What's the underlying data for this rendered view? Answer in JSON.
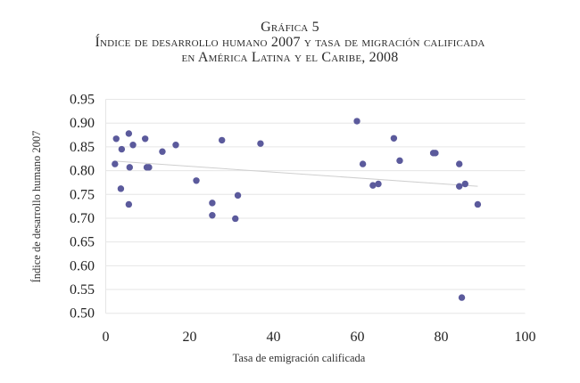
{
  "header": {
    "figure_label": "Gráfica 5",
    "title_line1": "Índice de desarrollo humano 2007 y tasa de migración calificada",
    "title_line2": "en América Latina y el Caribe, 2008"
  },
  "colors": {
    "point": "#5b5a9c",
    "grid": "#e6e6e6",
    "trend": "#cfcfcf"
  },
  "chart_data": {
    "type": "scatter",
    "title": "Índice de desarrollo humano 2007 y tasa de migración calificada en América Latina y el Caribe, 2008",
    "xlabel": "Tasa de emigración calificada",
    "ylabel": "Índice de desarrollo humano 2007",
    "xlim": [
      0,
      100
    ],
    "ylim": [
      0.5,
      0.95
    ],
    "grid": "horizontal",
    "x_ticks": [
      "0",
      "20",
      "40",
      "60",
      "80",
      "100"
    ],
    "x_tick_values": [
      0,
      20,
      40,
      60,
      80,
      100
    ],
    "y_ticks": [
      "0.95",
      "0.90",
      "0.85",
      "0.80",
      "0.75",
      "0.70",
      "0.65",
      "0.60",
      "0.55",
      "0.50"
    ],
    "y_tick_values": [
      0.95,
      0.9,
      0.85,
      0.8,
      0.75,
      0.7,
      0.65,
      0.6,
      0.55,
      0.5
    ],
    "points": [
      {
        "x": 2.5,
        "y": 0.867
      },
      {
        "x": 5.5,
        "y": 0.878
      },
      {
        "x": 9.4,
        "y": 0.867
      },
      {
        "x": 3.8,
        "y": 0.845
      },
      {
        "x": 6.5,
        "y": 0.854
      },
      {
        "x": 13.5,
        "y": 0.84
      },
      {
        "x": 16.7,
        "y": 0.854
      },
      {
        "x": 2.2,
        "y": 0.814
      },
      {
        "x": 5.7,
        "y": 0.807
      },
      {
        "x": 9.8,
        "y": 0.807
      },
      {
        "x": 10.3,
        "y": 0.807
      },
      {
        "x": 3.6,
        "y": 0.762
      },
      {
        "x": 5.5,
        "y": 0.729
      },
      {
        "x": 27.7,
        "y": 0.864
      },
      {
        "x": 36.9,
        "y": 0.857
      },
      {
        "x": 21.6,
        "y": 0.779
      },
      {
        "x": 31.5,
        "y": 0.748
      },
      {
        "x": 25.4,
        "y": 0.732
      },
      {
        "x": 25.4,
        "y": 0.706
      },
      {
        "x": 30.9,
        "y": 0.699
      },
      {
        "x": 59.9,
        "y": 0.904
      },
      {
        "x": 68.7,
        "y": 0.868
      },
      {
        "x": 61.3,
        "y": 0.814
      },
      {
        "x": 70.1,
        "y": 0.821
      },
      {
        "x": 78.1,
        "y": 0.837
      },
      {
        "x": 78.6,
        "y": 0.837
      },
      {
        "x": 63.7,
        "y": 0.769
      },
      {
        "x": 65.0,
        "y": 0.772
      },
      {
        "x": 84.3,
        "y": 0.814
      },
      {
        "x": 84.3,
        "y": 0.767
      },
      {
        "x": 85.7,
        "y": 0.772
      },
      {
        "x": 88.7,
        "y": 0.729
      },
      {
        "x": 84.9,
        "y": 0.533
      }
    ],
    "trendline": {
      "type": "linear",
      "x": [
        2.2,
        88.7
      ],
      "y": [
        0.82,
        0.767
      ]
    }
  }
}
